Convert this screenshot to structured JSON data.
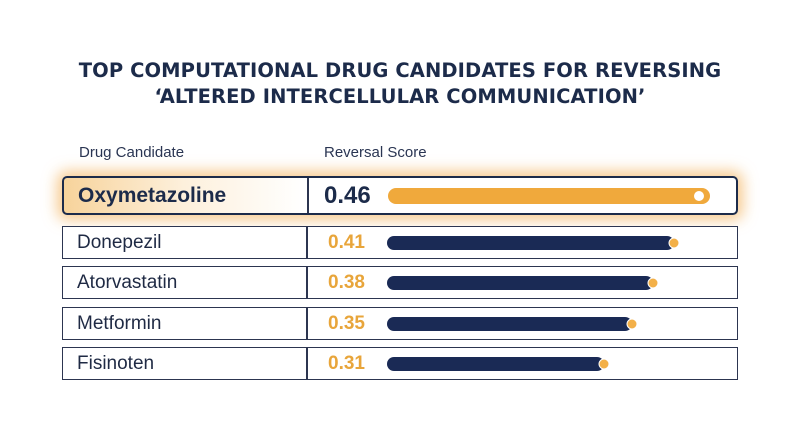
{
  "chart_data": {
    "type": "table",
    "title_lines": [
      "TOP COMPUTATIONAL DRUG CANDIDATES FOR REVERSING",
      "‘ALTERED INTERCELLULAR COMMUNICATION’"
    ],
    "columns": [
      "Drug Candidate",
      "Reversal Score"
    ],
    "rows": [
      {
        "name": "Oxymetazoline",
        "score": "0.46",
        "value": 0.46,
        "highlight": true
      },
      {
        "name": "Donepezil",
        "score": "0.41",
        "value": 0.41,
        "highlight": false
      },
      {
        "name": "Atorvastatin",
        "score": "0.38",
        "value": 0.38,
        "highlight": false
      },
      {
        "name": "Metformin",
        "score": "0.35",
        "value": 0.35,
        "highlight": false
      },
      {
        "name": "Fisinoten",
        "score": "0.31",
        "value": 0.31,
        "highlight": false
      }
    ],
    "colors": {
      "highlight_bar": "#f0a93c",
      "bar": "#1a2a55",
      "score_text": "#e8a53a",
      "text": "#1c2b4a"
    }
  }
}
